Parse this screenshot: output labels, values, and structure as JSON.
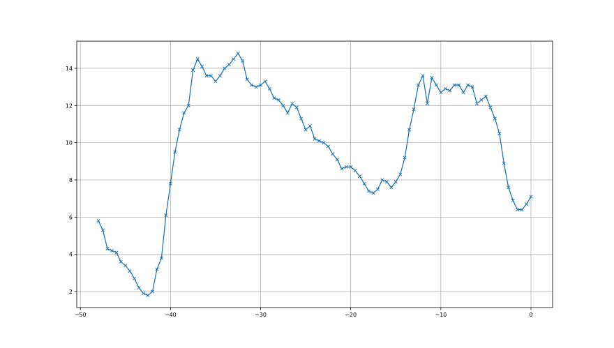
{
  "chart_data": {
    "type": "line",
    "title": "",
    "xlabel": "",
    "ylabel": "",
    "xlim": [
      -50.4,
      2.4
    ],
    "ylim": [
      1.14,
      15.46
    ],
    "xticks": [
      -50,
      -40,
      -30,
      -20,
      -10,
      0
    ],
    "yticks": [
      2,
      4,
      6,
      8,
      10,
      12,
      14
    ],
    "grid": true,
    "marker": "x",
    "color": "#1f77b4",
    "series": [
      {
        "x": [
          -48,
          -47.5,
          -47,
          -46.5,
          -46,
          -45.5,
          -45,
          -44.5,
          -44,
          -43.5,
          -43,
          -42.5,
          -42,
          -41.5,
          -41,
          -40.5,
          -40,
          -39.5,
          -39,
          -38.5,
          -38,
          -37.5,
          -37,
          -36.5,
          -36,
          -35.5,
          -35,
          -34.5,
          -34,
          -33.5,
          -33,
          -32.5,
          -32,
          -31.5,
          -31,
          -30.5,
          -30,
          -29.5,
          -29,
          -28.5,
          -28,
          -27.5,
          -27,
          -26.5,
          -26,
          -25.5,
          -25,
          -24.5,
          -24,
          -23.5,
          -23,
          -22.5,
          -22,
          -21.5,
          -21,
          -20.5,
          -20,
          -19.5,
          -19,
          -18.5,
          -18,
          -17.5,
          -17,
          -16.5,
          -16,
          -15.5,
          -15,
          -14.5,
          -14,
          -13.5,
          -13,
          -12.5,
          -12,
          -11.5,
          -11,
          -10.5,
          -10,
          -9.5,
          -9,
          -8.5,
          -8,
          -7.5,
          -7,
          -6.5,
          -6,
          -5.5,
          -5,
          -4.5,
          -4,
          -3.5,
          -3,
          -2.5,
          -2,
          -1.5,
          -1,
          -0.5,
          0
        ],
        "y": [
          5.8,
          5.3,
          4.3,
          4.2,
          4.1,
          3.6,
          3.4,
          3.1,
          2.7,
          2.2,
          1.9,
          1.8,
          2.0,
          3.2,
          3.8,
          6.1,
          7.8,
          9.5,
          10.7,
          11.6,
          12.0,
          13.9,
          14.5,
          14.1,
          13.6,
          13.6,
          13.3,
          13.6,
          14.0,
          14.2,
          14.5,
          14.8,
          14.4,
          13.4,
          13.1,
          13.0,
          13.1,
          13.3,
          12.9,
          12.4,
          12.3,
          12.0,
          11.6,
          12.1,
          11.9,
          11.3,
          10.7,
          10.9,
          10.2,
          10.1,
          10.0,
          9.8,
          9.4,
          9.1,
          8.6,
          8.7,
          8.7,
          8.5,
          8.2,
          7.8,
          7.4,
          7.3,
          7.5,
          8.0,
          7.9,
          7.6,
          7.9,
          8.3,
          9.2,
          10.7,
          11.8,
          13.1,
          13.6,
          12.1,
          13.5,
          13.1,
          12.7,
          12.9,
          12.8,
          13.1,
          13.1,
          12.7,
          13.1,
          13.0,
          12.1,
          12.3,
          12.5,
          11.9,
          11.3,
          10.5,
          8.9,
          7.6,
          6.9,
          6.4,
          6.4,
          6.7,
          7.1
        ]
      }
    ]
  }
}
